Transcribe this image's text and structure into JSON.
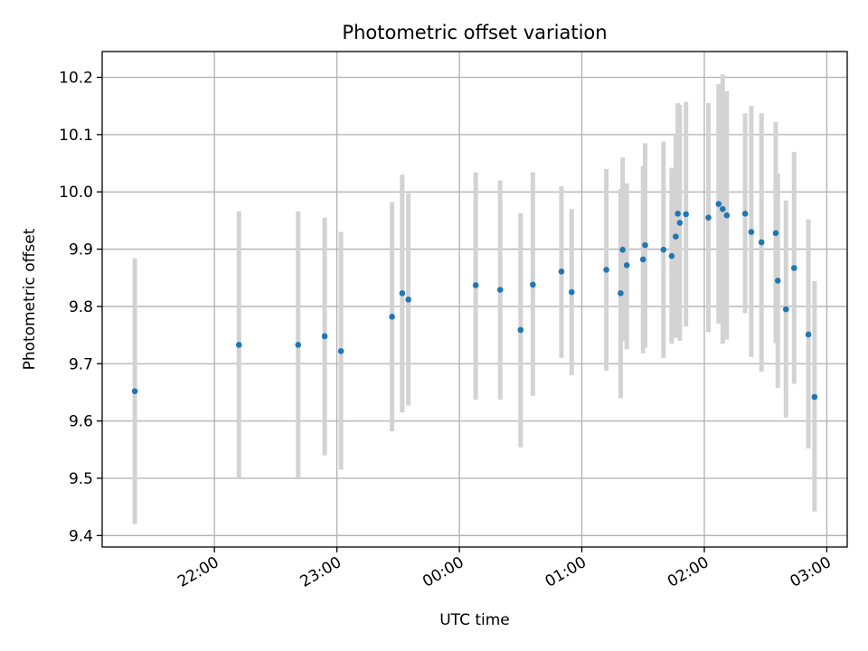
{
  "chart_data": {
    "type": "scatter",
    "title": "Photometric offset variation",
    "xlabel": "UTC time",
    "ylabel": "Photometric offset",
    "x_unit": "UTC time (HH:MM, next-day after 00:00)",
    "xlim": [
      "21:05",
      "03:10"
    ],
    "ylim": [
      9.38,
      10.245
    ],
    "x_ticks": [
      "22:00",
      "23:00",
      "00:00",
      "01:00",
      "02:00",
      "03:00"
    ],
    "y_ticks": [
      "9.4",
      "9.5",
      "9.6",
      "9.7",
      "9.8",
      "9.9",
      "10.0",
      "10.1",
      "10.2"
    ],
    "grid": true,
    "marker_color": "#1f77b4",
    "errorbar_color": "#d3d3d3",
    "points": [
      {
        "x": "21:21",
        "y": 9.652,
        "ylow": 9.42,
        "yhigh": 9.884
      },
      {
        "x": "22:12",
        "y": 9.733,
        "ylow": 9.5,
        "yhigh": 9.966
      },
      {
        "x": "22:41",
        "y": 9.733,
        "ylow": 9.5,
        "yhigh": 9.966
      },
      {
        "x": "22:54",
        "y": 9.748,
        "ylow": 9.54,
        "yhigh": 9.955
      },
      {
        "x": "23:02",
        "y": 9.722,
        "ylow": 9.515,
        "yhigh": 9.93
      },
      {
        "x": "23:27",
        "y": 9.782,
        "ylow": 9.582,
        "yhigh": 9.982
      },
      {
        "x": "23:32",
        "y": 9.823,
        "ylow": 9.615,
        "yhigh": 10.03
      },
      {
        "x": "23:35",
        "y": 9.812,
        "ylow": 9.627,
        "yhigh": 9.998
      },
      {
        "x": "00:08",
        "y": 9.837,
        "ylow": 9.637,
        "yhigh": 10.034
      },
      {
        "x": "00:20",
        "y": 9.829,
        "ylow": 9.637,
        "yhigh": 10.02
      },
      {
        "x": "00:30",
        "y": 9.759,
        "ylow": 9.554,
        "yhigh": 9.963
      },
      {
        "x": "00:36",
        "y": 9.838,
        "ylow": 9.644,
        "yhigh": 10.034
      },
      {
        "x": "00:50",
        "y": 9.861,
        "ylow": 9.71,
        "yhigh": 10.01
      },
      {
        "x": "00:55",
        "y": 9.825,
        "ylow": 9.68,
        "yhigh": 9.97
      },
      {
        "x": "01:12",
        "y": 9.864,
        "ylow": 9.688,
        "yhigh": 10.04
      },
      {
        "x": "01:19",
        "y": 9.823,
        "ylow": 9.64,
        "yhigh": 10.005
      },
      {
        "x": "01:20",
        "y": 9.899,
        "ylow": 9.74,
        "yhigh": 10.06
      },
      {
        "x": "01:22",
        "y": 9.872,
        "ylow": 9.725,
        "yhigh": 10.015
      },
      {
        "x": "01:30",
        "y": 9.882,
        "ylow": 9.718,
        "yhigh": 10.045
      },
      {
        "x": "01:31",
        "y": 9.907,
        "ylow": 9.728,
        "yhigh": 10.085
      },
      {
        "x": "01:40",
        "y": 9.899,
        "ylow": 9.71,
        "yhigh": 10.088
      },
      {
        "x": "01:44",
        "y": 9.888,
        "ylow": 9.735,
        "yhigh": 10.042
      },
      {
        "x": "01:46",
        "y": 9.922,
        "ylow": 9.745,
        "yhigh": 10.1
      },
      {
        "x": "01:47",
        "y": 9.962,
        "ylow": 9.77,
        "yhigh": 10.155
      },
      {
        "x": "01:48",
        "y": 9.946,
        "ylow": 9.74,
        "yhigh": 10.152
      },
      {
        "x": "01:51",
        "y": 9.961,
        "ylow": 9.765,
        "yhigh": 10.157
      },
      {
        "x": "02:02",
        "y": 9.955,
        "ylow": 9.755,
        "yhigh": 10.155
      },
      {
        "x": "02:07",
        "y": 9.979,
        "ylow": 9.77,
        "yhigh": 10.188
      },
      {
        "x": "02:09",
        "y": 9.97,
        "ylow": 9.735,
        "yhigh": 10.205
      },
      {
        "x": "02:11",
        "y": 9.959,
        "ylow": 9.742,
        "yhigh": 10.176
      },
      {
        "x": "02:20",
        "y": 9.962,
        "ylow": 9.788,
        "yhigh": 10.137
      },
      {
        "x": "02:23",
        "y": 9.93,
        "ylow": 9.712,
        "yhigh": 10.15
      },
      {
        "x": "02:28",
        "y": 9.912,
        "ylow": 9.686,
        "yhigh": 10.137
      },
      {
        "x": "02:35",
        "y": 9.928,
        "ylow": 9.736,
        "yhigh": 10.122
      },
      {
        "x": "02:36",
        "y": 9.845,
        "ylow": 9.658,
        "yhigh": 10.032
      },
      {
        "x": "02:40",
        "y": 9.795,
        "ylow": 9.606,
        "yhigh": 9.985
      },
      {
        "x": "02:44",
        "y": 9.867,
        "ylow": 9.665,
        "yhigh": 10.07
      },
      {
        "x": "02:51",
        "y": 9.751,
        "ylow": 9.552,
        "yhigh": 9.952
      },
      {
        "x": "02:54",
        "y": 9.642,
        "ylow": 9.442,
        "yhigh": 9.844
      }
    ]
  }
}
